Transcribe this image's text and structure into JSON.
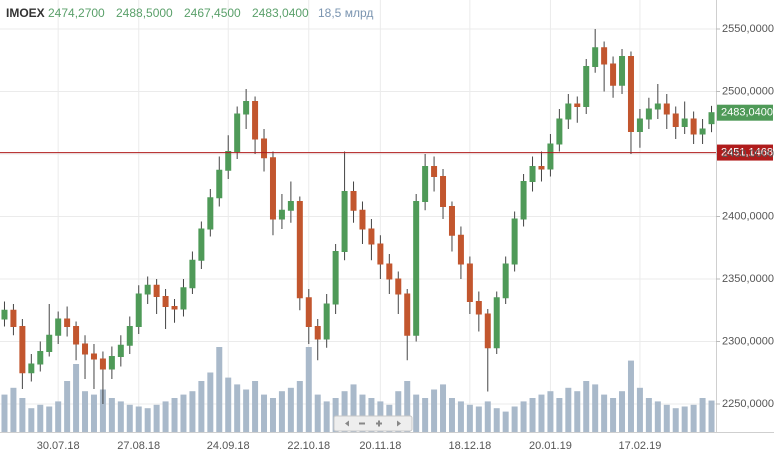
{
  "chart_data": {
    "type": "candlestick",
    "ylim": [
      2227.6,
      2573.2
    ],
    "yticks": [
      {
        "value": 2250,
        "label": "2250,0000"
      },
      {
        "value": 2300,
        "label": "2300,0000"
      },
      {
        "value": 2350,
        "label": "2350,0000"
      },
      {
        "value": 2400,
        "label": "2400,0000"
      },
      {
        "value": 2450,
        "label": "2450,0000"
      },
      {
        "value": 2500,
        "label": "2500,0000"
      },
      {
        "value": 2550,
        "label": "2550,0000"
      }
    ],
    "grid": true,
    "categories": [
      null,
      null,
      null,
      null,
      null,
      null,
      "30.07.18",
      null,
      null,
      null,
      null,
      null,
      null,
      null,
      null,
      "27.08.18",
      null,
      null,
      null,
      null,
      null,
      null,
      null,
      null,
      null,
      "24.09.18",
      null,
      null,
      null,
      null,
      null,
      null,
      null,
      null,
      "22.10.18",
      null,
      null,
      null,
      null,
      null,
      null,
      null,
      "20.11.18",
      null,
      null,
      null,
      null,
      null,
      null,
      null,
      null,
      null,
      "18.12.18",
      null,
      null,
      null,
      null,
      null,
      null,
      null,
      null,
      "20.01.19",
      null,
      null,
      null,
      null,
      null,
      null,
      null,
      null,
      null,
      "17.02.19",
      null,
      null,
      null,
      null,
      null,
      null,
      null,
      null
    ],
    "series": [
      {
        "name": "IMOEX",
        "up_color": "#4f9a58",
        "down_color": "#c2562e",
        "volume_color": "#a9b9ca",
        "open": [
          2318,
          2325,
          2312,
          2275,
          2282,
          2292,
          2305,
          2318,
          2312,
          2298,
          2290,
          2286,
          2278,
          2288,
          2297,
          2312,
          2338,
          2345,
          2336,
          2328,
          2326,
          2343,
          2365,
          2390,
          2415,
          2437,
          2452,
          2482,
          2492,
          2462,
          2447,
          2398,
          2405,
          2412,
          2335,
          2312,
          2302,
          2330,
          2372,
          2420,
          2405,
          2390,
          2378,
          2362,
          2350,
          2338,
          2305,
          2412,
          2440,
          2432,
          2408,
          2385,
          2362,
          2332,
          2322,
          2295,
          2335,
          2362,
          2398,
          2428,
          2440,
          2438,
          2458,
          2478,
          2490,
          2488,
          2520,
          2535,
          2522,
          2505,
          2528,
          2468,
          2478,
          2486,
          2490,
          2482,
          2472,
          2478,
          2466,
          2474.27
        ],
        "high": [
          2332,
          2330,
          2318,
          2290,
          2300,
          2330,
          2324,
          2328,
          2316,
          2305,
          2298,
          2292,
          2296,
          2305,
          2320,
          2345,
          2352,
          2350,
          2342,
          2334,
          2350,
          2372,
          2396,
          2422,
          2448,
          2465,
          2488,
          2502,
          2496,
          2470,
          2452,
          2418,
          2428,
          2416,
          2342,
          2318,
          2338,
          2378,
          2452,
          2428,
          2412,
          2398,
          2385,
          2370,
          2356,
          2342,
          2418,
          2450,
          2448,
          2438,
          2412,
          2392,
          2368,
          2340,
          2326,
          2340,
          2368,
          2404,
          2434,
          2448,
          2452,
          2466,
          2486,
          2498,
          2496,
          2526,
          2550,
          2540,
          2528,
          2534,
          2532,
          2486,
          2495,
          2506,
          2498,
          2488,
          2492,
          2484,
          2478,
          2488.5
        ],
        "low": [
          2312,
          2305,
          2262,
          2268,
          2276,
          2288,
          2298,
          2304,
          2285,
          2270,
          2262,
          2250,
          2270,
          2280,
          2290,
          2306,
          2330,
          2322,
          2310,
          2315,
          2320,
          2338,
          2358,
          2384,
          2408,
          2430,
          2446,
          2470,
          2450,
          2436,
          2385,
          2390,
          2395,
          2325,
          2298,
          2285,
          2295,
          2322,
          2365,
          2395,
          2378,
          2365,
          2350,
          2338,
          2322,
          2285,
          2300,
          2405,
          2420,
          2398,
          2372,
          2350,
          2322,
          2308,
          2260,
          2290,
          2330,
          2356,
          2392,
          2420,
          2428,
          2432,
          2452,
          2470,
          2475,
          2482,
          2515,
          2500,
          2495,
          2498,
          2450,
          2455,
          2470,
          2478,
          2470,
          2462,
          2466,
          2458,
          2458,
          2467.45
        ],
        "close": [
          2325,
          2312,
          2275,
          2282,
          2292,
          2305,
          2318,
          2312,
          2298,
          2290,
          2286,
          2278,
          2288,
          2297,
          2312,
          2338,
          2345,
          2336,
          2328,
          2326,
          2343,
          2365,
          2390,
          2415,
          2437,
          2452,
          2482,
          2492,
          2462,
          2447,
          2398,
          2405,
          2412,
          2335,
          2312,
          2302,
          2330,
          2372,
          2420,
          2405,
          2390,
          2378,
          2362,
          2350,
          2338,
          2305,
          2412,
          2440,
          2432,
          2408,
          2385,
          2362,
          2332,
          2322,
          2295,
          2335,
          2362,
          2398,
          2428,
          2440,
          2438,
          2458,
          2478,
          2490,
          2488,
          2520,
          2535,
          2522,
          2505,
          2528,
          2468,
          2478,
          2486,
          2490,
          2482,
          2472,
          2478,
          2466,
          2470,
          2483.04
        ],
        "volume": [
          22,
          26,
          20,
          14,
          16,
          15,
          18,
          30,
          40,
          24,
          22,
          25,
          20,
          18,
          16,
          15,
          14,
          16,
          18,
          20,
          22,
          24,
          30,
          35,
          50,
          32,
          28,
          25,
          30,
          22,
          20,
          24,
          26,
          30,
          50,
          22,
          18,
          20,
          24,
          28,
          22,
          20,
          18,
          16,
          24,
          30,
          22,
          20,
          25,
          28,
          20,
          18,
          16,
          15,
          18,
          14,
          12,
          15,
          18,
          20,
          22,
          24,
          20,
          26,
          24,
          30,
          28,
          22,
          20,
          24,
          42,
          26,
          20,
          18,
          16,
          14,
          15,
          16,
          20,
          18.5
        ],
        "value_labels": {
          "open": "2474,2700",
          "high": "2488,5000",
          "low": "2467,4500",
          "close": "2483,0400",
          "volume": "18,5 млрд"
        }
      }
    ],
    "hline": {
      "value": 2451.1468,
      "label": "2451,1468",
      "color": "#b01c1c"
    }
  }
}
